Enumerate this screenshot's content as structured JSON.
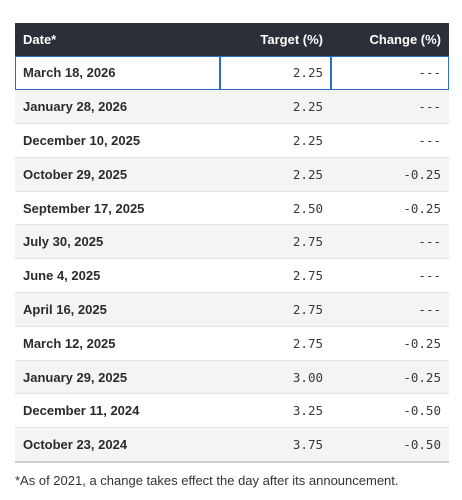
{
  "table": {
    "headers": {
      "date": "Date*",
      "target": "Target (%)",
      "change": "Change (%)"
    },
    "rows": [
      {
        "date": "March 18, 2026",
        "target": "2.25",
        "change": "---"
      },
      {
        "date": "January 28, 2026",
        "target": "2.25",
        "change": "---"
      },
      {
        "date": "December 10, 2025",
        "target": "2.25",
        "change": "---"
      },
      {
        "date": "October 29, 2025",
        "target": "2.25",
        "change": "-0.25"
      },
      {
        "date": "September 17, 2025",
        "target": "2.50",
        "change": "-0.25"
      },
      {
        "date": "July 30, 2025",
        "target": "2.75",
        "change": "---"
      },
      {
        "date": "June 4, 2025",
        "target": "2.75",
        "change": "---"
      },
      {
        "date": "April 16, 2025",
        "target": "2.75",
        "change": "---"
      },
      {
        "date": "March 12, 2025",
        "target": "2.75",
        "change": "-0.25"
      },
      {
        "date": "January 29, 2025",
        "target": "3.00",
        "change": "-0.25"
      },
      {
        "date": "December 11, 2024",
        "target": "3.25",
        "change": "-0.50"
      },
      {
        "date": "October 23, 2024",
        "target": "3.75",
        "change": "-0.50"
      }
    ]
  },
  "footnote": "*As of 2021, a change takes effect the day after its announcement.",
  "colors": {
    "header_bg": "#2d2f38",
    "selection_outline": "#2a6fc9",
    "stripe": "#f4f4f4"
  }
}
